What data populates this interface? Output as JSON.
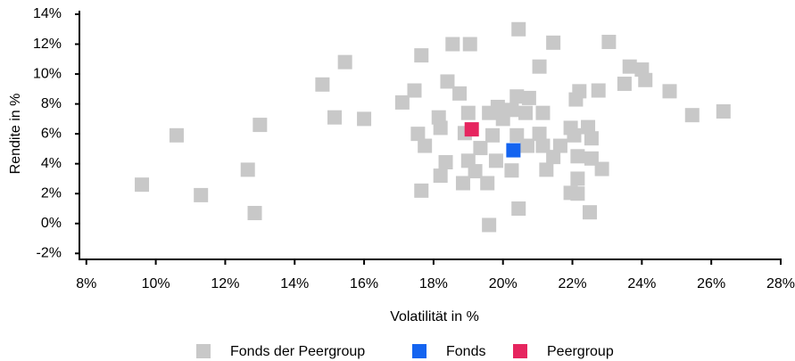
{
  "chart_data": {
    "type": "scatter",
    "x_label": "Volatilität in %",
    "y_label": "Rendite in %",
    "xlim": [
      7.8,
      28
    ],
    "ylim": [
      -2.4,
      14
    ],
    "xticks": [
      {
        "value": 8,
        "label": "8%"
      },
      {
        "value": 10,
        "label": "10%"
      },
      {
        "value": 12,
        "label": "12%"
      },
      {
        "value": 14,
        "label": "14%"
      },
      {
        "value": 16,
        "label": "16%"
      },
      {
        "value": 18,
        "label": "18%"
      },
      {
        "value": 20,
        "label": "20%"
      },
      {
        "value": 22,
        "label": "22%"
      },
      {
        "value": 24,
        "label": "24%"
      },
      {
        "value": 26,
        "label": "26%"
      },
      {
        "value": 28,
        "label": "28%"
      }
    ],
    "yticks": [
      {
        "value": -2,
        "label": "-2%"
      },
      {
        "value": 0,
        "label": "0%"
      },
      {
        "value": 2,
        "label": "2%"
      },
      {
        "value": 4,
        "label": "4%"
      },
      {
        "value": 6,
        "label": "6%"
      },
      {
        "value": 8,
        "label": "8%"
      },
      {
        "value": 10,
        "label": "10%"
      },
      {
        "value": 12,
        "label": "12%"
      },
      {
        "value": 14,
        "label": "14%"
      }
    ],
    "series": [
      {
        "name": "Fonds der Peergroup",
        "color": "#c8c8c8",
        "x": [
          9.6,
          10.6,
          11.3,
          12.65,
          12.85,
          13.0,
          14.8,
          15.15,
          15.45,
          16.0,
          17.1,
          17.45,
          17.65,
          17.55,
          17.75,
          17.65,
          18.15,
          18.2,
          18.2,
          18.35,
          18.4,
          18.55,
          18.75,
          19.05,
          19.0,
          18.9,
          18.85,
          19.0,
          19.2,
          19.35,
          19.55,
          19.6,
          19.6,
          19.7,
          19.8,
          19.85,
          20.0,
          20.25,
          20.25,
          20.4,
          20.45,
          20.4,
          20.45,
          20.75,
          20.65,
          20.7,
          21.05,
          21.15,
          21.05,
          21.15,
          21.25,
          21.45,
          21.45,
          21.65,
          21.95,
          22.05,
          22.1,
          22.2,
          22.15,
          21.95,
          22.15,
          22.15,
          22.45,
          22.55,
          22.55,
          22.5,
          22.75,
          22.85,
          23.05,
          23.5,
          23.65,
          24.0,
          24.1,
          24.8,
          25.45,
          26.35
        ],
        "y": [
          2.6,
          5.9,
          1.9,
          3.6,
          0.7,
          6.6,
          9.3,
          7.1,
          10.8,
          7.0,
          8.1,
          8.9,
          11.25,
          6.0,
          5.2,
          2.2,
          7.1,
          6.4,
          3.2,
          4.1,
          9.5,
          12.0,
          8.7,
          12.0,
          7.4,
          6.05,
          2.7,
          4.2,
          3.5,
          5.05,
          2.7,
          -0.1,
          7.4,
          5.9,
          4.2,
          7.8,
          7.0,
          7.6,
          3.55,
          8.5,
          13.0,
          5.9,
          1.0,
          8.4,
          7.4,
          5.2,
          10.5,
          7.4,
          6.0,
          5.2,
          3.6,
          12.1,
          4.45,
          5.2,
          6.4,
          5.9,
          8.3,
          8.85,
          3.0,
          2.05,
          2.0,
          4.5,
          6.45,
          5.7,
          4.35,
          0.75,
          8.9,
          3.65,
          12.15,
          9.35,
          10.5,
          10.3,
          9.6,
          8.85,
          7.25,
          7.5
        ]
      },
      {
        "name": "Fonds",
        "color": "#1464f0",
        "x": [
          20.3
        ],
        "y": [
          4.9
        ]
      },
      {
        "name": "Peergroup",
        "color": "#e6255f",
        "x": [
          19.1
        ],
        "y": [
          6.3
        ]
      }
    ]
  }
}
